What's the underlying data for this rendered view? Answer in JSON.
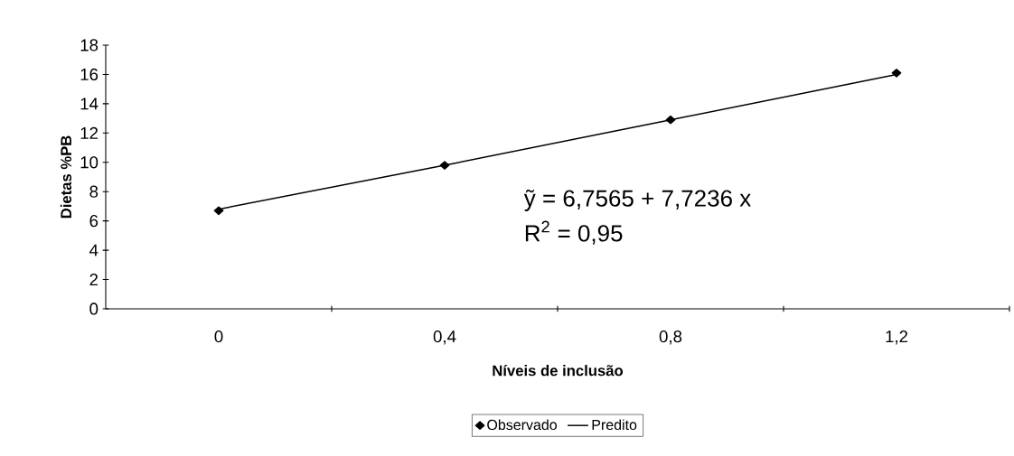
{
  "chart_data": {
    "type": "line",
    "xlabel": "Níveis de inclusão",
    "ylabel": "Dietas %PB",
    "categories": [
      "0",
      "0,4",
      "0,8",
      "1,2"
    ],
    "series": [
      {
        "name": "Observado",
        "type": "scatter",
        "color": "#000000",
        "marker": "diamond",
        "values": [
          6.7,
          9.8,
          12.9,
          16.1
        ]
      },
      {
        "name": "Predito",
        "color": "#000000",
        "marker": "none",
        "line_style": "solid",
        "values": [
          6.8,
          9.8,
          12.9,
          16.0
        ]
      }
    ],
    "ylim": [
      0,
      18
    ],
    "yticks": [
      0,
      2,
      4,
      6,
      8,
      10,
      12,
      14,
      16,
      18
    ],
    "annotations": [
      "ỹ = 6,7565 + 7,7236 x",
      "R$^{2}$ = 0,95"
    ],
    "legend": "bottom"
  }
}
